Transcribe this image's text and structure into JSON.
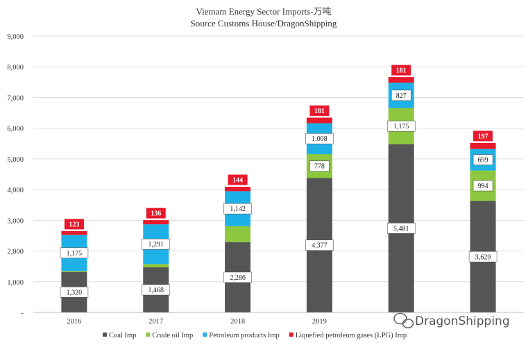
{
  "chart_data": {
    "type": "bar",
    "stacked": true,
    "title": "Vietnam Energy Sector Imports-万吨",
    "subtitle": "Source Customs House/DragonShipping",
    "categories": [
      "2016",
      "2017",
      "2018",
      "2019",
      "",
      ""
    ],
    "ylim": [
      0,
      9000
    ],
    "yticks": [
      "-",
      "1,000",
      "2,000",
      "3,000",
      "4,000",
      "5,000",
      "6,000",
      "7,000",
      "8,000",
      "9,000"
    ],
    "grid": true,
    "legend_position": "bottom",
    "series": [
      {
        "name": "Coal Imp",
        "color": "#555555",
        "values": [
          1320,
          1468,
          2286,
          4377,
          5481,
          3629
        ],
        "labels": [
          "1,320",
          "1,468",
          "2,286",
          "4,377",
          "5,481",
          "3,629"
        ]
      },
      {
        "name": "Crude oil Imp",
        "color": "#8dc63f",
        "values": [
          30,
          110,
          520,
          778,
          1175,
          994
        ],
        "labels": [
          "",
          "",
          "",
          "778",
          "1,175",
          "994"
        ]
      },
      {
        "name": "Petroleum products Imp",
        "color": "#1eb1e7",
        "values": [
          1175,
          1291,
          1142,
          1008,
          827,
          699
        ],
        "labels": [
          "1,175",
          "1,291",
          "1,142",
          "1,008",
          "827",
          "699"
        ]
      },
      {
        "name": "Liquefied petroleum gases (LPG) Imp",
        "color": "#e8192c",
        "values": [
          123,
          136,
          144,
          181,
          181,
          197
        ],
        "labels": [
          "123",
          "136",
          "144",
          "181",
          "181",
          "197"
        ]
      }
    ]
  },
  "watermark": {
    "text": "DragonShipping",
    "icon": "wechat-icon"
  }
}
